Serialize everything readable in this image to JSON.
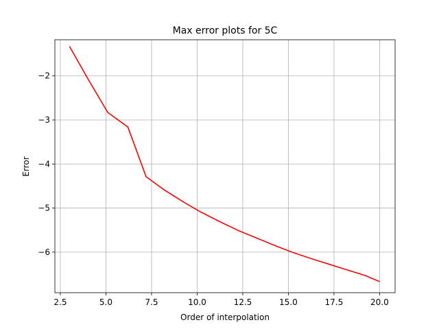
{
  "chart_data": {
    "type": "line",
    "title": "Max error plots for 5C",
    "xlabel": "Order of interpolation",
    "ylabel": "Error",
    "xlim": [
      2.2,
      20.85
    ],
    "ylim": [
      -6.92,
      -1.18
    ],
    "xticks": [
      2.5,
      5.0,
      7.5,
      10.0,
      12.5,
      15.0,
      17.5,
      20.0
    ],
    "xtick_labels": [
      "2.5",
      "5.0",
      "7.5",
      "10.0",
      "12.5",
      "15.0",
      "17.5",
      "20.0"
    ],
    "yticks": [
      -2,
      -3,
      -4,
      -5,
      -6
    ],
    "ytick_labels": [
      "−2",
      "−3",
      "−4",
      "−5",
      "−6"
    ],
    "grid": true,
    "series": [
      {
        "color": "#ff0000",
        "x": [
          3.0,
          4.0,
          5.1,
          6.2,
          7.2,
          8.2,
          9.2,
          10.2,
          11.2,
          12.2,
          13.2,
          14.2,
          15.2,
          16.2,
          17.2,
          18.2,
          19.2,
          20.0
        ],
        "y": [
          -1.33,
          -2.06,
          -2.83,
          -3.16,
          -4.29,
          -4.59,
          -4.85,
          -5.09,
          -5.3,
          -5.5,
          -5.67,
          -5.84,
          -6.0,
          -6.14,
          -6.27,
          -6.4,
          -6.53,
          -6.67
        ]
      }
    ]
  }
}
